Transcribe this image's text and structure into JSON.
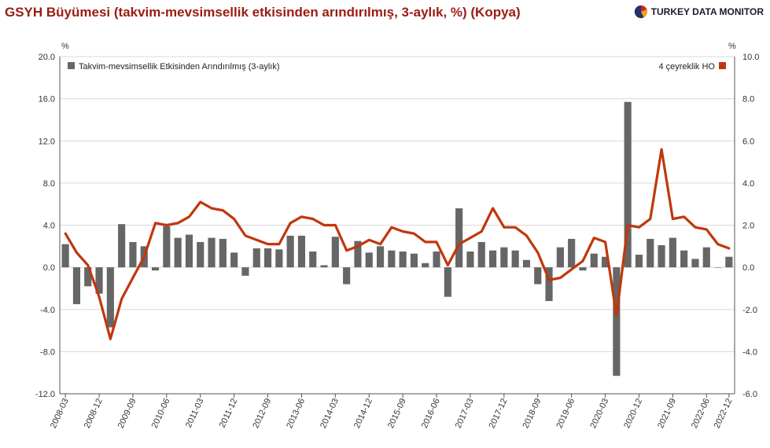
{
  "header": {
    "title": "GSYH Büyümesi (takvim-mevsimsellik etkisinden arındırılmış, 3-aylık, %) (Kopya)",
    "brand": "TURKEY DATA MONITOR"
  },
  "colors": {
    "bar": "#666666",
    "line": "#c0370c",
    "title": "#9b1c12",
    "grid": "#d9d9d9",
    "axis": "#555555"
  },
  "chart_data": {
    "type": "bar+line",
    "left_axis": {
      "unit": "%",
      "range": [
        -12,
        20
      ],
      "ticks": [
        "-12.0",
        "-8.0",
        "-4.0",
        "0.0",
        "4.0",
        "8.0",
        "12.0",
        "16.0",
        "20.0"
      ]
    },
    "right_axis": {
      "unit": "%",
      "range": [
        -6,
        10
      ],
      "ticks": [
        "-6.0",
        "-4.0",
        "-2.0",
        "0.0",
        "2.0",
        "4.0",
        "6.0",
        "8.0",
        "10.0"
      ]
    },
    "grid": true,
    "legend_placement": "top-left / top-right",
    "x": [
      "2008-03",
      "2008-06",
      "2008-09",
      "2008-12",
      "2009-03",
      "2009-06",
      "2009-09",
      "2009-12",
      "2010-03",
      "2010-06",
      "2010-09",
      "2010-12",
      "2011-03",
      "2011-06",
      "2011-09",
      "2011-12",
      "2012-03",
      "2012-06",
      "2012-09",
      "2012-12",
      "2013-03",
      "2013-06",
      "2013-09",
      "2013-12",
      "2014-03",
      "2014-06",
      "2014-09",
      "2014-12",
      "2015-03",
      "2015-06",
      "2015-09",
      "2015-12",
      "2016-03",
      "2016-06",
      "2016-09",
      "2016-12",
      "2017-03",
      "2017-06",
      "2017-09",
      "2017-12",
      "2018-03",
      "2018-06",
      "2018-09",
      "2018-12",
      "2019-03",
      "2019-06",
      "2019-09",
      "2019-12",
      "2020-03",
      "2020-06",
      "2020-09",
      "2020-12",
      "2021-03",
      "2021-06",
      "2021-09",
      "2021-12",
      "2022-03",
      "2022-06",
      "2022-09",
      "2022-12"
    ],
    "x_tick_labels": [
      "2008-03",
      "2008-12",
      "2009-09",
      "2010-06",
      "2011-03",
      "2011-12",
      "2012-09",
      "2013-06",
      "2014-03",
      "2014-12",
      "2015-09",
      "2016-06",
      "2017-03",
      "2017-12",
      "2018-09",
      "2019-06",
      "2020-03",
      "2020-12",
      "2021-09",
      "2022-06",
      "2022-12"
    ],
    "series": [
      {
        "name": "Takvim-mevsimsellik Etkisinden Arındırılmış (3-aylık)",
        "type": "bar",
        "axis": "left",
        "values": [
          2.2,
          -3.5,
          -1.8,
          -2.5,
          -5.7,
          4.1,
          2.4,
          2.0,
          -0.3,
          3.9,
          2.8,
          3.1,
          2.4,
          2.8,
          2.7,
          1.4,
          -0.8,
          1.8,
          1.8,
          1.7,
          3.0,
          3.0,
          1.5,
          0.2,
          2.9,
          -1.6,
          2.5,
          1.4,
          2.0,
          1.6,
          1.5,
          1.3,
          0.4,
          1.5,
          -2.8,
          5.6,
          1.5,
          2.4,
          1.6,
          1.9,
          1.6,
          0.7,
          -1.6,
          -3.2,
          1.9,
          2.7,
          -0.3,
          1.3,
          1.0,
          -10.3,
          15.7,
          1.2,
          2.7,
          2.1,
          2.8,
          1.6,
          0.8,
          1.9,
          0.0,
          1.0
        ]
      },
      {
        "name": "4 çeyreklik HO",
        "type": "line",
        "axis": "right",
        "values": [
          1.6,
          0.7,
          0.1,
          -1.4,
          -3.4,
          -1.5,
          -0.5,
          0.5,
          2.1,
          2.0,
          2.1,
          2.4,
          3.1,
          2.8,
          2.7,
          2.3,
          1.5,
          1.3,
          1.1,
          1.1,
          2.1,
          2.4,
          2.3,
          2.0,
          2.0,
          0.8,
          1.0,
          1.3,
          1.1,
          1.9,
          1.7,
          1.6,
          1.2,
          1.2,
          0.1,
          1.1,
          1.4,
          1.7,
          2.8,
          1.9,
          1.9,
          1.5,
          0.7,
          -0.6,
          -0.5,
          -0.1,
          0.3,
          1.4,
          1.2,
          -2.3,
          2.0,
          1.9,
          2.3,
          5.6,
          2.3,
          2.4,
          1.9,
          1.8,
          1.1,
          0.9
        ]
      }
    ]
  }
}
